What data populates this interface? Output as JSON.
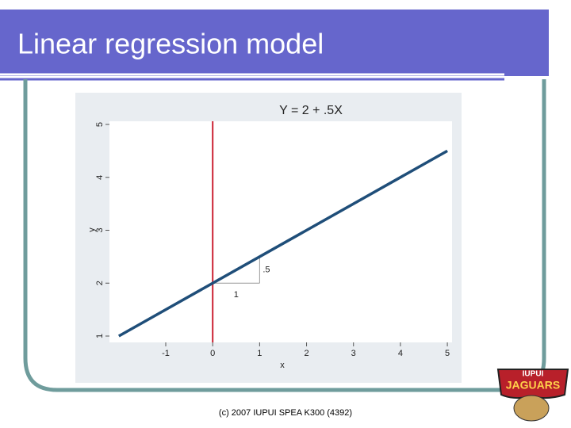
{
  "title": "Linear regression model",
  "footer": "(c) 2007 IUPUI SPEA K300 (4392)",
  "logo": {
    "top": "IUPUI",
    "bottom": "JAGUARS"
  },
  "chart_data": {
    "type": "line",
    "title": "Y = 2 + .5X",
    "x_label": "x",
    "y_label": "y",
    "x": [
      -2,
      5
    ],
    "values": [
      1,
      4.5
    ],
    "color": "#1f4e79",
    "xlim": [
      -2.2,
      5.1
    ],
    "ylim": [
      0.88,
      5.06
    ],
    "xticks": [
      -1,
      0,
      1,
      2,
      3,
      4,
      5
    ],
    "yticks": [
      1,
      2,
      3,
      4,
      5
    ],
    "grid": false,
    "vline": {
      "x": 0,
      "color": "#cc2233"
    },
    "slope_triangle": {
      "x": [
        0,
        1
      ],
      "y": [
        2,
        2.5
      ],
      "run_label": "1",
      "rise_label": ".5"
    }
  }
}
